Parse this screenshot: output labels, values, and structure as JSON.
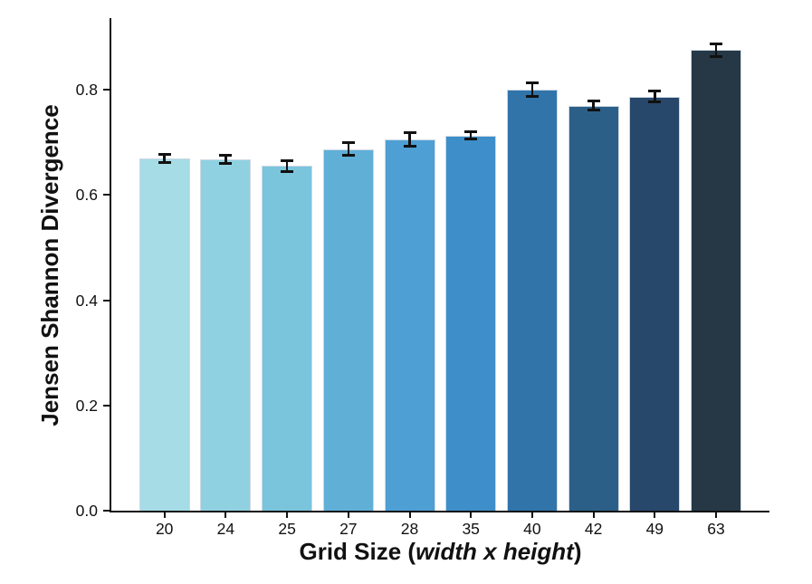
{
  "chart_data": {
    "type": "bar",
    "title": "",
    "categories": [
      "20",
      "24",
      "25",
      "27",
      "28",
      "35",
      "40",
      "42",
      "49",
      "63"
    ],
    "values": [
      0.67,
      0.668,
      0.655,
      0.687,
      0.706,
      0.713,
      0.8,
      0.77,
      0.787,
      0.876
    ],
    "errors": [
      0.008,
      0.008,
      0.01,
      0.012,
      0.013,
      0.007,
      0.013,
      0.009,
      0.01,
      0.012
    ],
    "bar_colors": [
      "#A6DCE6",
      "#90D1E1",
      "#7AC4DC",
      "#5FAFD7",
      "#4D9FD4",
      "#3D8EC9",
      "#3174AA",
      "#2C5F87",
      "#27486B",
      "#263845"
    ],
    "bar_edge_color": "#CDD8E3",
    "error_bar_color": "#111111",
    "axis_color": "#111111",
    "xlabel": {
      "prefix": "Grid Size (",
      "italic": "width x height",
      "suffix": ")"
    },
    "ylabel": "Jensen Shannon Divergence",
    "yticks": [
      "0.0",
      "0.2",
      "0.4",
      "0.6",
      "0.8"
    ],
    "ylim": [
      0.0,
      0.936
    ],
    "grid": false,
    "legend": "none",
    "error_bars": true
  }
}
